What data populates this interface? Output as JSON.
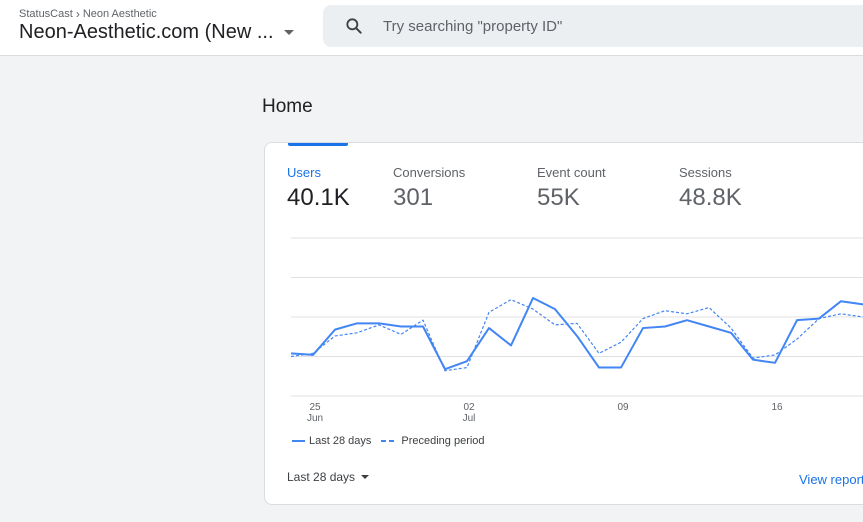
{
  "header": {
    "breadcrumb": [
      "StatusCast",
      "Neon Aesthetic"
    ],
    "property_name": "Neon-Aesthetic.com (New ...",
    "search_placeholder": "Try searching \"property ID\""
  },
  "page": {
    "title": "Home"
  },
  "metrics": [
    {
      "label": "Users",
      "value": "40.1K"
    },
    {
      "label": "Conversions",
      "value": "301"
    },
    {
      "label": "Event count",
      "value": "55K"
    },
    {
      "label": "Sessions",
      "value": "48.8K"
    }
  ],
  "chart_data": {
    "type": "line",
    "x_tick_labels": [
      {
        "day": "25",
        "month": "Jun"
      },
      {
        "day": "02",
        "month": "Jul"
      },
      {
        "day": "09",
        "month": ""
      },
      {
        "day": "16",
        "month": ""
      }
    ],
    "series": [
      {
        "name": "Last 28 days",
        "style": "solid",
        "values": [
          0.27,
          0.26,
          0.42,
          0.46,
          0.46,
          0.44,
          0.44,
          0.17,
          0.22,
          0.43,
          0.32,
          0.62,
          0.55,
          0.38,
          0.18,
          0.18,
          0.43,
          0.44,
          0.48,
          0.44,
          0.4,
          0.23,
          0.21,
          0.48,
          0.49,
          0.6,
          0.58
        ]
      },
      {
        "name": "Preceding period",
        "style": "dashed",
        "values": [
          0.25,
          0.27,
          0.38,
          0.4,
          0.45,
          0.39,
          0.48,
          0.16,
          0.18,
          0.53,
          0.61,
          0.55,
          0.45,
          0.46,
          0.27,
          0.34,
          0.49,
          0.54,
          0.52,
          0.56,
          0.43,
          0.24,
          0.26,
          0.36,
          0.49,
          0.52,
          0.5
        ]
      }
    ],
    "colors": {
      "line": "#4285f4",
      "grid": "#e0e0e0",
      "accent": "#1a73e8"
    },
    "grid": true
  },
  "legend": {
    "current": "Last 28 days",
    "previous": "Preceding period"
  },
  "footer": {
    "range_label": "Last 28 days",
    "view_report": "View report"
  }
}
